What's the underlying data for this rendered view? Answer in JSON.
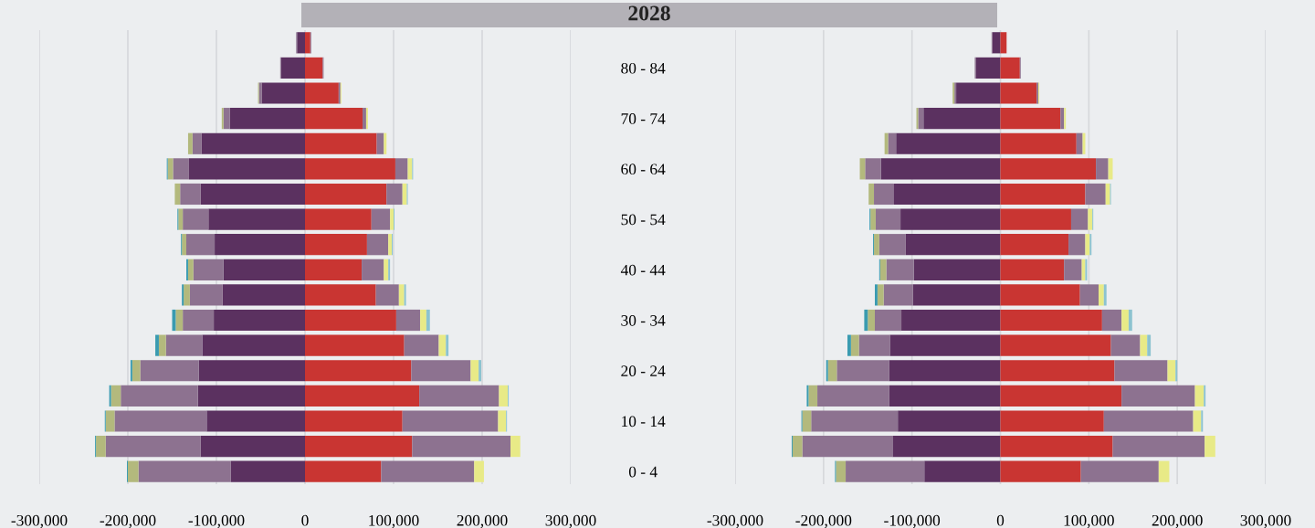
{
  "chart_data": [
    {
      "type": "bar",
      "title": "2028",
      "orientation": "horizontal",
      "stacked": true,
      "grid": "x",
      "legend": false,
      "categories": [
        null,
        "80 - 84",
        null,
        "70 - 74",
        null,
        "60 - 64",
        null,
        "50 - 54",
        null,
        "40 - 44",
        null,
        "30 - 34",
        null,
        "20 - 24",
        null,
        "10 - 14",
        null,
        "0 - 4"
      ],
      "xlim": [
        -300000,
        300000
      ],
      "xticks": [
        {
          "value": -300000,
          "label": "-300,000"
        },
        {
          "value": -200000,
          "label": "-200,000"
        },
        {
          "value": -100000,
          "label": "-100,000"
        },
        0,
        {
          "value": 100000,
          "label": "100,000"
        },
        {
          "value": 200000,
          "label": "200,000"
        },
        {
          "value": 300000,
          "label": "300,000"
        }
      ],
      "series": [
        {
          "color": "#5b3160",
          "values": [
            -9000,
            -27000,
            -49000,
            -85000,
            -117000,
            -131000,
            -118000,
            -109000,
            -102000,
            -92000,
            -93000,
            -103000,
            -116000,
            -120000,
            -121000,
            -111000,
            -118000,
            -84000
          ]
        },
        {
          "color": "#8d7290",
          "values": [
            -1000,
            -1000,
            -3000,
            -7000,
            -10000,
            -18000,
            -23000,
            -29000,
            -32000,
            -34000,
            -37000,
            -35000,
            -41000,
            -66000,
            -87000,
            -104000,
            -107000,
            -104000
          ]
        },
        {
          "color": "#b3b97d",
          "values": [
            null,
            null,
            -1000,
            -2000,
            -5000,
            -6000,
            -6000,
            -5000,
            -5000,
            -6000,
            -7000,
            -8000,
            -8000,
            -9000,
            -11000,
            -10000,
            -11000,
            -12000
          ]
        },
        {
          "color": "#3a9bb0",
          "values": [
            null,
            null,
            null,
            null,
            null,
            -1000,
            null,
            -1000,
            -1000,
            -2000,
            -2000,
            -4000,
            -4000,
            -2000,
            -2000,
            -1000,
            -1000,
            -1000
          ]
        },
        {
          "color": "#c93532",
          "values": [
            6000,
            20000,
            38000,
            65000,
            81000,
            102000,
            92000,
            75000,
            70000,
            64000,
            80000,
            103000,
            112000,
            120000,
            129000,
            110000,
            121000,
            86000
          ]
        },
        {
          "color": "#8d7290",
          "values": [
            1000,
            1000,
            2000,
            4000,
            8000,
            14000,
            18000,
            21000,
            24000,
            25000,
            26000,
            27000,
            39000,
            67000,
            90000,
            108000,
            111000,
            105000
          ]
        },
        {
          "color": "#e8ea87",
          "values": [
            null,
            null,
            1000,
            2000,
            3000,
            5000,
            5000,
            4000,
            4000,
            5000,
            6000,
            7000,
            8000,
            9000,
            10000,
            9000,
            11000,
            11000
          ]
        },
        {
          "color": "#8cc3d0",
          "values": [
            null,
            null,
            null,
            null,
            null,
            1000,
            1000,
            1000,
            1000,
            2000,
            2000,
            4000,
            3000,
            3000,
            1000,
            1000,
            null,
            null
          ]
        }
      ]
    },
    {
      "type": "bar",
      "orientation": "horizontal",
      "stacked": true,
      "grid": "x",
      "legend": false,
      "tick_labels": "x",
      "categories": [
        null,
        null,
        null,
        null,
        null,
        null,
        null,
        null,
        null,
        null,
        null,
        null,
        null,
        null,
        null,
        null,
        null,
        null
      ],
      "xlim": [
        -300000,
        300000
      ],
      "xticks": [
        {
          "value": -300000,
          "label": "-300,000"
        },
        {
          "value": -200000,
          "label": "-200,000"
        },
        {
          "value": -100000,
          "label": "-100,000"
        },
        0,
        {
          "value": 100000,
          "label": "100,000"
        },
        {
          "value": 200000,
          "label": "200,000"
        },
        {
          "value": 300000,
          "label": "300,000"
        }
      ],
      "series": [
        {
          "color": "#5b3160",
          "values": [
            -9000,
            -28000,
            -50000,
            -87000,
            -118000,
            -135000,
            -121000,
            -113000,
            -107000,
            -98000,
            -99000,
            -112000,
            -125000,
            -126000,
            -126000,
            -116000,
            -122000,
            -86000
          ]
        },
        {
          "color": "#8d7290",
          "values": [
            -1000,
            -1000,
            -2000,
            -6000,
            -9000,
            -18000,
            -22000,
            -28000,
            -30000,
            -31000,
            -33000,
            -30000,
            -35000,
            -59000,
            -81000,
            -98000,
            -102000,
            -89000
          ]
        },
        {
          "color": "#b3b97d",
          "values": [
            null,
            null,
            -2000,
            -2000,
            -4000,
            -6000,
            -6000,
            -6000,
            -6000,
            -7000,
            -7000,
            -8000,
            -9000,
            -10000,
            -10000,
            -10000,
            -11000,
            -11000
          ]
        },
        {
          "color": "#3a9bb0",
          "values": [
            null,
            null,
            null,
            null,
            null,
            null,
            null,
            -1000,
            -1000,
            -1000,
            -3000,
            -4000,
            -4000,
            -2000,
            -2000,
            -1000,
            -1000,
            -1000
          ]
        },
        {
          "color": "#c93532",
          "values": [
            7000,
            22000,
            41000,
            68000,
            86000,
            108000,
            96000,
            80000,
            77000,
            72000,
            90000,
            115000,
            125000,
            129000,
            137000,
            117000,
            127000,
            91000
          ]
        },
        {
          "color": "#8d7290",
          "values": [
            null,
            1000,
            2000,
            4000,
            7000,
            14000,
            23000,
            19000,
            19000,
            20000,
            21000,
            22000,
            33000,
            60000,
            83000,
            101000,
            104000,
            88000
          ]
        },
        {
          "color": "#e8ea87",
          "values": [
            null,
            null,
            1000,
            2000,
            3000,
            5000,
            5000,
            5000,
            5000,
            4000,
            6000,
            8000,
            8000,
            9000,
            10000,
            9000,
            12000,
            12000
          ]
        },
        {
          "color": "#8cc3d0",
          "values": [
            null,
            null,
            null,
            null,
            null,
            null,
            1000,
            1000,
            2000,
            2000,
            3000,
            4000,
            4000,
            2000,
            2000,
            2000,
            null,
            null
          ]
        }
      ]
    }
  ]
}
